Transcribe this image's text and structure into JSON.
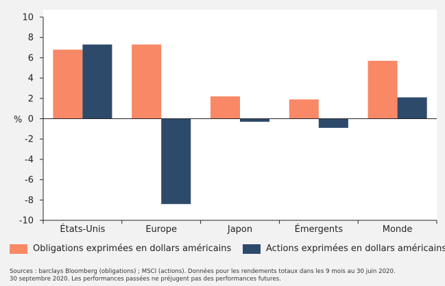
{
  "chart_data": {
    "type": "bar",
    "categories": [
      "États-Unis",
      "Europe",
      "Japon",
      "Émergents",
      "Monde"
    ],
    "series": [
      {
        "name": "Obligations exprimées en dollars américains",
        "color": "#f98866",
        "values": [
          6.8,
          7.3,
          2.2,
          1.9,
          5.7
        ]
      },
      {
        "name": "Actions exprimées en dollars américains",
        "color": "#2e4a6b",
        "values": [
          7.3,
          -8.4,
          -0.3,
          -0.9,
          2.1
        ]
      }
    ],
    "ylim": [
      -10,
      10
    ],
    "yticks": [
      "10",
      "8",
      "6",
      "4",
      "2",
      "0",
      "-2",
      "-4",
      "-6",
      "-8",
      "-10"
    ],
    "ylabel": "%",
    "grid": false,
    "legend_position": "bottom"
  },
  "sources": {
    "line1": "Sources : barclays Bloomberg (obligations) ; MSCI (actions). Données pour les rendements totaux dans les 9 mois au 30 juin 2020.",
    "line2": "30 septembre 2020. Les performances passées ne préjugent pas des performances futures."
  }
}
